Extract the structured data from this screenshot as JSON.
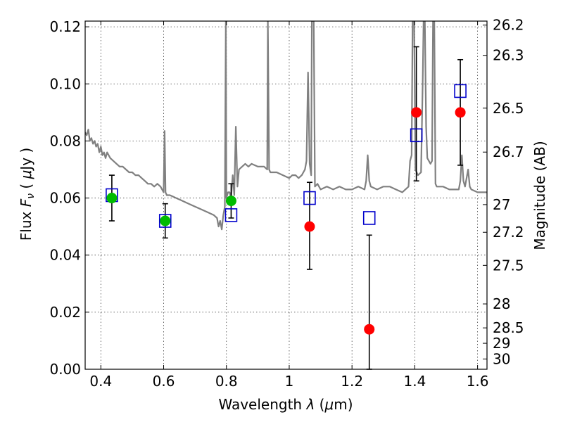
{
  "chart_data": {
    "type": "scatter",
    "xlabel": "Wavelength  λ (μm)",
    "ylabel": "Flux  F_ν  ( μJy )",
    "ylabel_right": "Magnitude (AB)",
    "xlim": [
      0.35,
      1.63
    ],
    "ylim": [
      0.0,
      0.122
    ],
    "x_ticks": [
      {
        "value": 0.4,
        "label": "0.4"
      },
      {
        "value": 0.6,
        "label": "0.6"
      },
      {
        "value": 0.8,
        "label": "0.8"
      },
      {
        "value": 1.0,
        "label": "1"
      },
      {
        "value": 1.2,
        "label": "1.2"
      },
      {
        "value": 1.4,
        "label": "1.4"
      },
      {
        "value": 1.6,
        "label": "1.6"
      }
    ],
    "y_ticks": [
      {
        "value": 0.0,
        "label": "0.00"
      },
      {
        "value": 0.02,
        "label": "0.02"
      },
      {
        "value": 0.04,
        "label": "0.04"
      },
      {
        "value": 0.06,
        "label": "0.06"
      },
      {
        "value": 0.08,
        "label": "0.08"
      },
      {
        "value": 0.1,
        "label": "0.10"
      },
      {
        "value": 0.12,
        "label": "0.12"
      }
    ],
    "right_ticks": [
      {
        "label": "26.2",
        "flux": 0.1206
      },
      {
        "label": "26.3",
        "flux": 0.11
      },
      {
        "label": "26.5",
        "flux": 0.0915
      },
      {
        "label": "26.7",
        "flux": 0.0761
      },
      {
        "label": "27",
        "flux": 0.0577
      },
      {
        "label": "27.2",
        "flux": 0.048
      },
      {
        "label": "27.5",
        "flux": 0.0364
      },
      {
        "label": "28",
        "flux": 0.0229
      },
      {
        "label": "28.5",
        "flux": 0.0145
      },
      {
        "label": "29",
        "flux": 0.0091
      },
      {
        "label": "30",
        "flux": 0.0036
      }
    ],
    "grid": true,
    "series": [
      {
        "kind": "model-spectrum",
        "color": "#808080",
        "points": [
          [
            0.35,
            0.083
          ],
          [
            0.355,
            0.082
          ],
          [
            0.36,
            0.084
          ],
          [
            0.365,
            0.08
          ],
          [
            0.37,
            0.081
          ],
          [
            0.375,
            0.079
          ],
          [
            0.38,
            0.08
          ],
          [
            0.385,
            0.078
          ],
          [
            0.39,
            0.079
          ],
          [
            0.395,
            0.076
          ],
          [
            0.4,
            0.078
          ],
          [
            0.405,
            0.075
          ],
          [
            0.41,
            0.076
          ],
          [
            0.415,
            0.074
          ],
          [
            0.42,
            0.076
          ],
          [
            0.43,
            0.074
          ],
          [
            0.44,
            0.073
          ],
          [
            0.45,
            0.072
          ],
          [
            0.46,
            0.071
          ],
          [
            0.47,
            0.071
          ],
          [
            0.48,
            0.07
          ],
          [
            0.49,
            0.069
          ],
          [
            0.5,
            0.069
          ],
          [
            0.51,
            0.068
          ],
          [
            0.52,
            0.068
          ],
          [
            0.53,
            0.067
          ],
          [
            0.54,
            0.066
          ],
          [
            0.55,
            0.065
          ],
          [
            0.56,
            0.065
          ],
          [
            0.57,
            0.064
          ],
          [
            0.58,
            0.065
          ],
          [
            0.59,
            0.064
          ],
          [
            0.595,
            0.063
          ],
          [
            0.6,
            0.062
          ],
          [
            0.603,
            0.0835
          ],
          [
            0.606,
            0.062
          ],
          [
            0.61,
            0.061
          ],
          [
            0.62,
            0.061
          ],
          [
            0.64,
            0.06
          ],
          [
            0.66,
            0.059
          ],
          [
            0.68,
            0.058
          ],
          [
            0.7,
            0.057
          ],
          [
            0.72,
            0.056
          ],
          [
            0.74,
            0.055
          ],
          [
            0.76,
            0.054
          ],
          [
            0.77,
            0.053
          ],
          [
            0.775,
            0.05
          ],
          [
            0.78,
            0.052
          ],
          [
            0.785,
            0.049
          ],
          [
            0.79,
            0.054
          ],
          [
            0.795,
            0.057
          ],
          [
            0.798,
            0.122
          ],
          [
            0.8,
            0.06
          ],
          [
            0.805,
            0.062
          ],
          [
            0.81,
            0.062
          ],
          [
            0.815,
            0.06
          ],
          [
            0.82,
            0.068
          ],
          [
            0.825,
            0.061
          ],
          [
            0.83,
            0.085
          ],
          [
            0.835,
            0.064
          ],
          [
            0.84,
            0.07
          ],
          [
            0.85,
            0.071
          ],
          [
            0.86,
            0.072
          ],
          [
            0.87,
            0.071
          ],
          [
            0.88,
            0.072
          ],
          [
            0.9,
            0.071
          ],
          [
            0.92,
            0.071
          ],
          [
            0.93,
            0.07
          ],
          [
            0.932,
            0.122
          ],
          [
            0.936,
            0.07
          ],
          [
            0.94,
            0.069
          ],
          [
            0.96,
            0.069
          ],
          [
            0.98,
            0.068
          ],
          [
            1.0,
            0.067
          ],
          [
            1.01,
            0.068
          ],
          [
            1.02,
            0.068
          ],
          [
            1.03,
            0.067
          ],
          [
            1.04,
            0.068
          ],
          [
            1.05,
            0.07
          ],
          [
            1.055,
            0.073
          ],
          [
            1.06,
            0.104
          ],
          [
            1.065,
            0.072
          ],
          [
            1.07,
            0.068
          ],
          [
            1.072,
            0.122
          ],
          [
            1.078,
            0.122
          ],
          [
            1.082,
            0.064
          ],
          [
            1.09,
            0.065
          ],
          [
            1.1,
            0.063
          ],
          [
            1.12,
            0.064
          ],
          [
            1.14,
            0.063
          ],
          [
            1.16,
            0.064
          ],
          [
            1.18,
            0.063
          ],
          [
            1.2,
            0.063
          ],
          [
            1.22,
            0.064
          ],
          [
            1.24,
            0.063
          ],
          [
            1.245,
            0.066
          ],
          [
            1.25,
            0.075
          ],
          [
            1.255,
            0.066
          ],
          [
            1.26,
            0.064
          ],
          [
            1.28,
            0.063
          ],
          [
            1.3,
            0.064
          ],
          [
            1.32,
            0.064
          ],
          [
            1.34,
            0.063
          ],
          [
            1.36,
            0.062
          ],
          [
            1.38,
            0.064
          ],
          [
            1.385,
            0.073
          ],
          [
            1.39,
            0.075
          ],
          [
            1.393,
            0.122
          ],
          [
            1.398,
            0.122
          ],
          [
            1.402,
            0.07
          ],
          [
            1.41,
            0.068
          ],
          [
            1.42,
            0.069
          ],
          [
            1.425,
            0.1
          ],
          [
            1.428,
            0.122
          ],
          [
            1.432,
            0.122
          ],
          [
            1.436,
            0.085
          ],
          [
            1.44,
            0.074
          ],
          [
            1.45,
            0.072
          ],
          [
            1.455,
            0.073
          ],
          [
            1.458,
            0.122
          ],
          [
            1.462,
            0.122
          ],
          [
            1.466,
            0.065
          ],
          [
            1.47,
            0.064
          ],
          [
            1.49,
            0.064
          ],
          [
            1.51,
            0.063
          ],
          [
            1.53,
            0.063
          ],
          [
            1.54,
            0.063
          ],
          [
            1.545,
            0.066
          ],
          [
            1.55,
            0.075
          ],
          [
            1.555,
            0.066
          ],
          [
            1.56,
            0.064
          ],
          [
            1.57,
            0.07
          ],
          [
            1.575,
            0.064
          ],
          [
            1.58,
            0.063
          ],
          [
            1.6,
            0.062
          ],
          [
            1.62,
            0.062
          ],
          [
            1.63,
            0.062
          ]
        ]
      },
      {
        "kind": "model-photometry",
        "marker": "open-square",
        "color": "#0000cc",
        "points": [
          [
            0.435,
            0.061
          ],
          [
            0.605,
            0.052
          ],
          [
            0.815,
            0.054
          ],
          [
            1.065,
            0.06
          ],
          [
            1.255,
            0.053
          ],
          [
            1.405,
            0.082
          ],
          [
            1.545,
            0.0975
          ]
        ]
      },
      {
        "kind": "observed-green",
        "marker": "filled-circle",
        "color": "#00bb00",
        "points": [
          {
            "x": 0.435,
            "y": 0.06,
            "lo": 0.052,
            "hi": 0.068
          },
          {
            "x": 0.605,
            "y": 0.052,
            "lo": 0.046,
            "hi": 0.058
          },
          {
            "x": 0.815,
            "y": 0.059,
            "lo": 0.053,
            "hi": 0.065
          }
        ]
      },
      {
        "kind": "observed-red",
        "marker": "filled-circle",
        "color": "#ff0000",
        "points": [
          {
            "x": 1.065,
            "y": 0.05,
            "lo": 0.035,
            "hi": 0.0655
          },
          {
            "x": 1.255,
            "y": 0.014,
            "lo": 0.0,
            "hi": 0.047
          },
          {
            "x": 1.405,
            "y": 0.09,
            "lo": 0.066,
            "hi": 0.113
          },
          {
            "x": 1.545,
            "y": 0.09,
            "lo": 0.0715,
            "hi": 0.1085
          }
        ]
      }
    ]
  }
}
